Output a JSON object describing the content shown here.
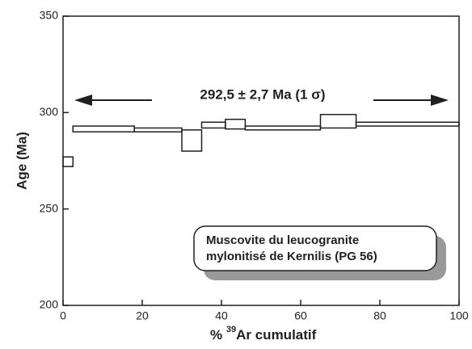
{
  "chart_data": {
    "type": "step-spectrum",
    "x_label": {
      "prefix": "%",
      "superscript": "39",
      "text": "Ar cumulatif"
    },
    "y_label": "Age (Ma)",
    "annotation": "292,5 ± 2,7 Ma (1 σ)",
    "legend_lines": [
      "Muscovite du leucogranite",
      "mylonitisé de Kernilis (PG 56)"
    ],
    "x_start": [
      0,
      2.5,
      18,
      30,
      35,
      41,
      46,
      65,
      74
    ],
    "x_end": [
      2.5,
      18,
      30,
      35,
      41,
      46,
      65,
      74,
      100
    ],
    "values": [
      274.5,
      291.5,
      291,
      285.5,
      293.5,
      294,
      292,
      295.5,
      294
    ],
    "errors": [
      2.5,
      1.5,
      1,
      5.5,
      1.5,
      2.5,
      1,
      3.5,
      1
    ],
    "color": "#231f20",
    "xlim": [
      0,
      100
    ],
    "xticks": [
      0,
      20,
      40,
      60,
      80,
      100
    ],
    "ylim": [
      200,
      350
    ],
    "yticks": [
      200,
      250,
      300,
      350
    ]
  }
}
